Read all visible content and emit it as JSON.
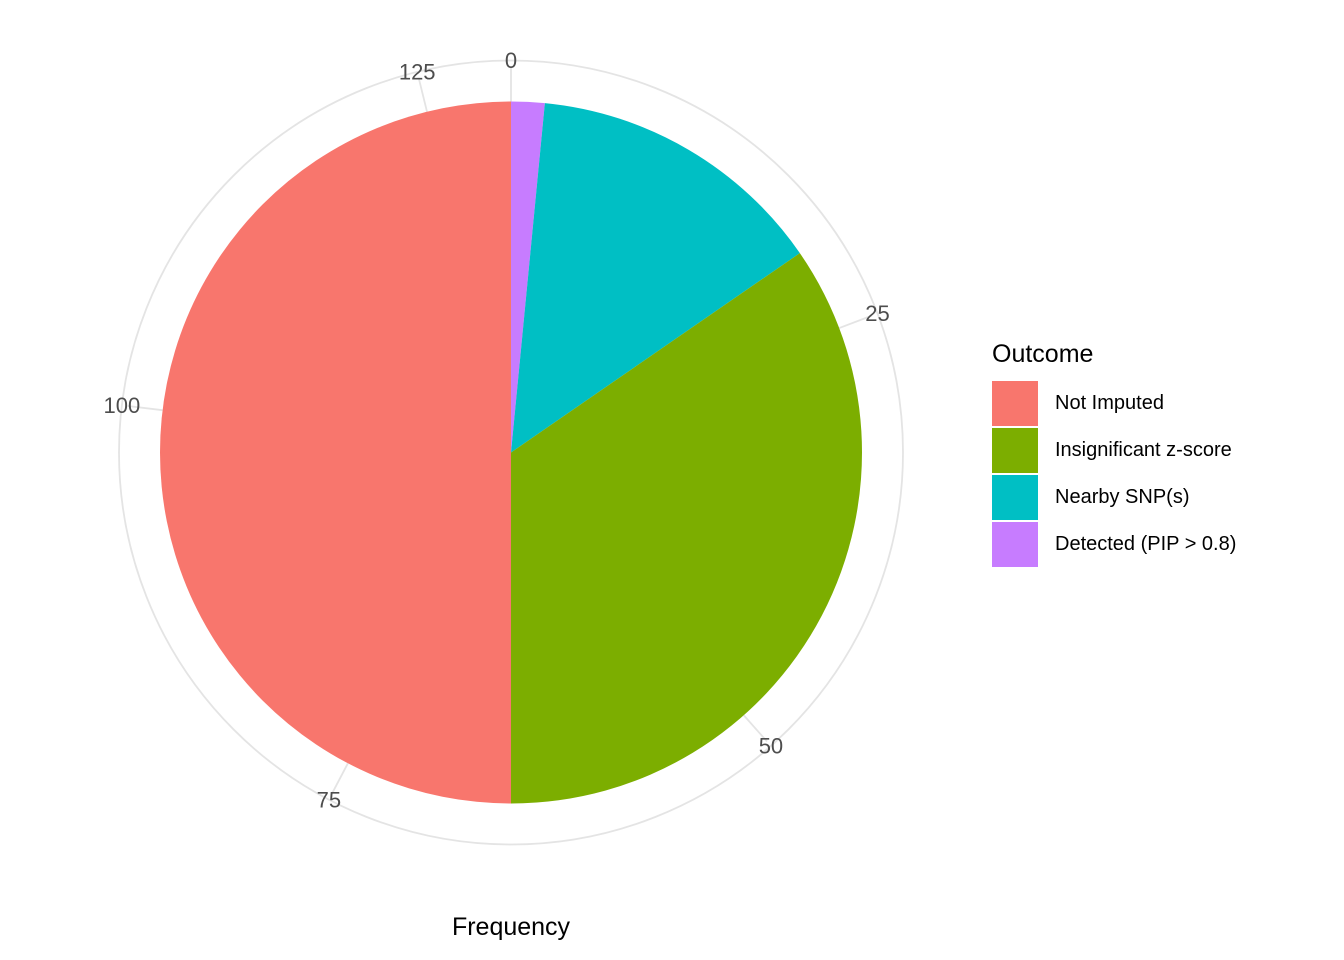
{
  "chart_data": {
    "type": "pie",
    "legend_title": "Outcome",
    "series": [
      {
        "name": "Not Imputed",
        "value": 65,
        "color": "#F8766D"
      },
      {
        "name": "Insignificant z-score",
        "value": 45,
        "color": "#7CAE00"
      },
      {
        "name": "Nearby SNP(s)",
        "value": 18,
        "color": "#00BFC4"
      },
      {
        "name": "Detected (PIP > 0.8)",
        "value": 2,
        "color": "#C77CFF"
      }
    ],
    "total": 130,
    "axis": {
      "label": "Frequency",
      "ticks": [
        0,
        25,
        50,
        75,
        100,
        125
      ],
      "tick_label_color": "#4D4D4D",
      "grid_color": "#E4E4E4"
    },
    "layout_hints": {
      "start_angle": "top",
      "direction": "clockwise, reverse of legend order",
      "legend_position": "right",
      "grid": "radial major gridlines and one outer circle"
    }
  }
}
